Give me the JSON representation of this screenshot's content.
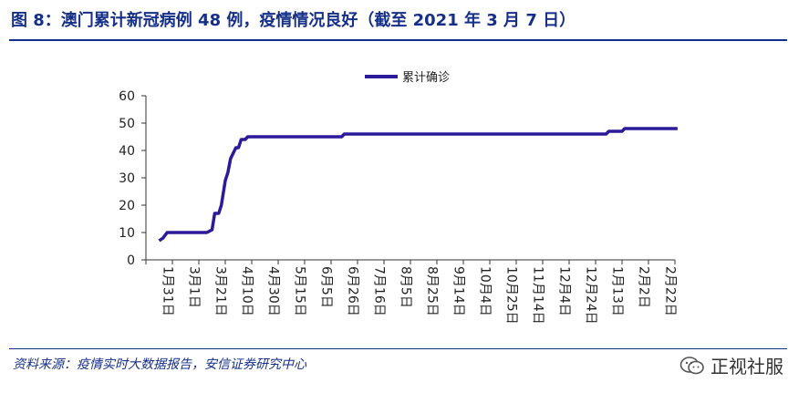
{
  "header": {
    "title": "图 8：澳门累计新冠病例 48 例，疫情情况良好（截至 2021 年 3 月 7 日）"
  },
  "footer": {
    "source": "资料来源：疫情实时大数据报告，安信证券研究中心",
    "watermark": "正视社服",
    "watermark_icon": "wechat-icon"
  },
  "colors": {
    "accent": "#16308a",
    "series": "#2b1a9a"
  },
  "chart_data": {
    "type": "line",
    "legend": "top-center",
    "grid": false,
    "ylim": [
      0,
      60
    ],
    "yticks": [
      0,
      10,
      20,
      30,
      40,
      50,
      60
    ],
    "categories": [
      "1月31日",
      "3月1日",
      "3月21日",
      "4月10日",
      "4月30日",
      "5月15日",
      "6月5日",
      "6月26日",
      "7月16日",
      "8月5日",
      "8月25日",
      "9月14日",
      "10月4日",
      "10月25日",
      "11月14日",
      "12月4日",
      "12月24日",
      "1月13日",
      "2月2日",
      "2月22日"
    ],
    "series": [
      {
        "name": "累计确诊",
        "color": "#2b1a9a",
        "points": [
          [
            0,
            7
          ],
          [
            0.15,
            8
          ],
          [
            0.3,
            10
          ],
          [
            1,
            10
          ],
          [
            1.8,
            10
          ],
          [
            2.0,
            11
          ],
          [
            2.1,
            17
          ],
          [
            2.25,
            17
          ],
          [
            2.35,
            20
          ],
          [
            2.5,
            29
          ],
          [
            2.6,
            32
          ],
          [
            2.7,
            37
          ],
          [
            2.8,
            39
          ],
          [
            2.9,
            41
          ],
          [
            3.0,
            41
          ],
          [
            3.1,
            44
          ],
          [
            3.25,
            44
          ],
          [
            3.35,
            45
          ],
          [
            4,
            45
          ],
          [
            5,
            45
          ],
          [
            6,
            45
          ],
          [
            6.9,
            45
          ],
          [
            7.0,
            46
          ],
          [
            8,
            46
          ],
          [
            9,
            46
          ],
          [
            10,
            46
          ],
          [
            11,
            46
          ],
          [
            12,
            46
          ],
          [
            13,
            46
          ],
          [
            14,
            46
          ],
          [
            15,
            46
          ],
          [
            16,
            46
          ],
          [
            16.9,
            46
          ],
          [
            17.0,
            47
          ],
          [
            17.5,
            47
          ],
          [
            17.6,
            48
          ],
          [
            18,
            48
          ],
          [
            19,
            48
          ],
          [
            19.6,
            48
          ]
        ]
      }
    ]
  }
}
